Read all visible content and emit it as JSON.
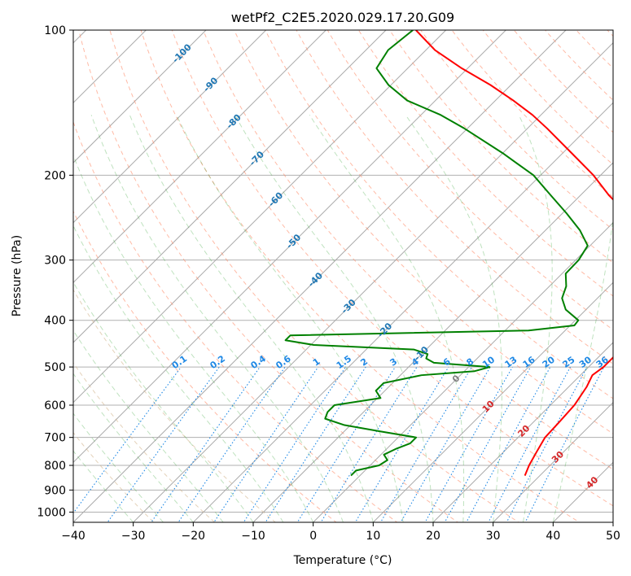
{
  "chart_data": {
    "type": "line",
    "subtype": "skew-t log-p diagram",
    "title": "wetPf2_C2E5.2020.029.17.20.G09",
    "xlabel": "Temperature (°C)",
    "ylabel": "Pressure (hPa)",
    "xlim": [
      -40,
      50
    ],
    "ylim": [
      1050,
      100
    ],
    "y_scale": "log",
    "grid": true,
    "x_ticks": [
      -40,
      -30,
      -20,
      -10,
      0,
      10,
      20,
      30,
      40,
      50
    ],
    "x_tick_labels": [
      "−40",
      "−30",
      "−20",
      "−10",
      "0",
      "10",
      "20",
      "30",
      "40",
      "50"
    ],
    "y_ticks": [
      1000,
      900,
      800,
      700,
      600,
      500,
      400,
      300,
      200,
      100
    ],
    "y_tick_labels": [
      "1000",
      "900",
      "800",
      "700",
      "600",
      "500",
      "400",
      "300",
      "200",
      "100"
    ],
    "series": [
      {
        "role": "temperature",
        "color": "#ff0000",
        "pressure": [
          840,
          800,
          750,
          700,
          650,
          600,
          550,
          520,
          500,
          480,
          460,
          450,
          440,
          430,
          420,
          410,
          400,
          390,
          380,
          360,
          340,
          320,
          300,
          280,
          260,
          240,
          220,
          200,
          180,
          160,
          150,
          140,
          130,
          120,
          110,
          100
        ],
        "temperature": [
          27.5,
          26.5,
          25.5,
          24.5,
          24.3,
          24,
          23,
          22,
          22.5,
          22.5,
          22.5,
          21,
          20,
          19,
          19,
          20.5,
          21.5,
          22.5,
          22.5,
          21.5,
          19.7,
          17.5,
          14.5,
          11,
          6.2,
          0.7,
          -5.3,
          -11.2,
          -18.5,
          -26.7,
          -31.4,
          -37,
          -43.4,
          -51,
          -58.5,
          -65
        ]
      },
      {
        "role": "dewpoint",
        "color": "#008000",
        "pressure": [
          840,
          820,
          800,
          780,
          760,
          740,
          720,
          700,
          680,
          660,
          640,
          620,
          600,
          580,
          560,
          540,
          520,
          510,
          500,
          490,
          480,
          470,
          460,
          450,
          440,
          430,
          420,
          410,
          400,
          380,
          360,
          340,
          320,
          300,
          280,
          260,
          240,
          220,
          200,
          180,
          160,
          150,
          140,
          130,
          120,
          110,
          100
        ],
        "temperature": [
          -1.5,
          -1.5,
          1.5,
          2,
          0.5,
          1.5,
          3,
          3,
          -4,
          -11,
          -15.3,
          -16,
          -16,
          -9.5,
          -11.5,
          -11.5,
          -6.5,
          1.7,
          3.5,
          -6.5,
          -8.5,
          -9,
          -12,
          -29.5,
          -35,
          -35,
          3.9,
          10.7,
          10.5,
          6.6,
          4.1,
          2.8,
          0.6,
          0.5,
          -0.4,
          -4.3,
          -9.3,
          -15,
          -21.2,
          -30,
          -40.5,
          -46.7,
          -54.7,
          -60.4,
          -65.2,
          -66.3,
          -65.5
        ]
      }
    ],
    "isotherm_labels": [
      "-100",
      "-90",
      "-80",
      "-70",
      "-60",
      "-50",
      "-40",
      "-30",
      "-20",
      "-10",
      "0"
    ],
    "dry_adiabat_labels": [
      "10",
      "20",
      "30",
      "40"
    ],
    "mixing_ratio_labels": [
      "0.1",
      "0.2",
      "0.4",
      "0.6",
      "1",
      "1.5",
      "2",
      "3",
      "4",
      "6",
      "8",
      "10",
      "13",
      "16",
      "20",
      "25",
      "30",
      "36"
    ],
    "colors": {
      "isotherm_label": "#1f77b4",
      "isotherm_line": "#aaaaaa",
      "dry_adiabat": "#ff8c69",
      "dry_adiabat_label": "#d62728",
      "moist_adiabat": "#2ca02c",
      "mixing_ratio": "#1e88e5",
      "zero_label": "#808080"
    }
  }
}
